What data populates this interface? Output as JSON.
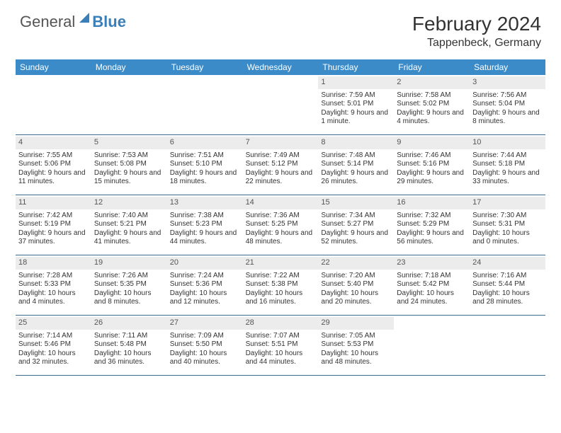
{
  "logo": {
    "part1": "General",
    "part2": "Blue"
  },
  "title": "February 2024",
  "location": "Tappenbeck, Germany",
  "weekdays": [
    "Sunday",
    "Monday",
    "Tuesday",
    "Wednesday",
    "Thursday",
    "Friday",
    "Saturday"
  ],
  "colors": {
    "header_bg": "#3b8bc9",
    "header_text": "#ffffff",
    "daynum_bg": "#ececec",
    "border": "#3b6a8f",
    "text": "#333333",
    "logo_blue": "#3b7fb8"
  },
  "layout": {
    "columns": 7,
    "rows": 5,
    "first_day_column": 4
  },
  "days": [
    {
      "n": 1,
      "sunrise": "7:59 AM",
      "sunset": "5:01 PM",
      "daylight": "9 hours and 1 minute."
    },
    {
      "n": 2,
      "sunrise": "7:58 AM",
      "sunset": "5:02 PM",
      "daylight": "9 hours and 4 minutes."
    },
    {
      "n": 3,
      "sunrise": "7:56 AM",
      "sunset": "5:04 PM",
      "daylight": "9 hours and 8 minutes."
    },
    {
      "n": 4,
      "sunrise": "7:55 AM",
      "sunset": "5:06 PM",
      "daylight": "9 hours and 11 minutes."
    },
    {
      "n": 5,
      "sunrise": "7:53 AM",
      "sunset": "5:08 PM",
      "daylight": "9 hours and 15 minutes."
    },
    {
      "n": 6,
      "sunrise": "7:51 AM",
      "sunset": "5:10 PM",
      "daylight": "9 hours and 18 minutes."
    },
    {
      "n": 7,
      "sunrise": "7:49 AM",
      "sunset": "5:12 PM",
      "daylight": "9 hours and 22 minutes."
    },
    {
      "n": 8,
      "sunrise": "7:48 AM",
      "sunset": "5:14 PM",
      "daylight": "9 hours and 26 minutes."
    },
    {
      "n": 9,
      "sunrise": "7:46 AM",
      "sunset": "5:16 PM",
      "daylight": "9 hours and 29 minutes."
    },
    {
      "n": 10,
      "sunrise": "7:44 AM",
      "sunset": "5:18 PM",
      "daylight": "9 hours and 33 minutes."
    },
    {
      "n": 11,
      "sunrise": "7:42 AM",
      "sunset": "5:19 PM",
      "daylight": "9 hours and 37 minutes."
    },
    {
      "n": 12,
      "sunrise": "7:40 AM",
      "sunset": "5:21 PM",
      "daylight": "9 hours and 41 minutes."
    },
    {
      "n": 13,
      "sunrise": "7:38 AM",
      "sunset": "5:23 PM",
      "daylight": "9 hours and 44 minutes."
    },
    {
      "n": 14,
      "sunrise": "7:36 AM",
      "sunset": "5:25 PM",
      "daylight": "9 hours and 48 minutes."
    },
    {
      "n": 15,
      "sunrise": "7:34 AM",
      "sunset": "5:27 PM",
      "daylight": "9 hours and 52 minutes."
    },
    {
      "n": 16,
      "sunrise": "7:32 AM",
      "sunset": "5:29 PM",
      "daylight": "9 hours and 56 minutes."
    },
    {
      "n": 17,
      "sunrise": "7:30 AM",
      "sunset": "5:31 PM",
      "daylight": "10 hours and 0 minutes."
    },
    {
      "n": 18,
      "sunrise": "7:28 AM",
      "sunset": "5:33 PM",
      "daylight": "10 hours and 4 minutes."
    },
    {
      "n": 19,
      "sunrise": "7:26 AM",
      "sunset": "5:35 PM",
      "daylight": "10 hours and 8 minutes."
    },
    {
      "n": 20,
      "sunrise": "7:24 AM",
      "sunset": "5:36 PM",
      "daylight": "10 hours and 12 minutes."
    },
    {
      "n": 21,
      "sunrise": "7:22 AM",
      "sunset": "5:38 PM",
      "daylight": "10 hours and 16 minutes."
    },
    {
      "n": 22,
      "sunrise": "7:20 AM",
      "sunset": "5:40 PM",
      "daylight": "10 hours and 20 minutes."
    },
    {
      "n": 23,
      "sunrise": "7:18 AM",
      "sunset": "5:42 PM",
      "daylight": "10 hours and 24 minutes."
    },
    {
      "n": 24,
      "sunrise": "7:16 AM",
      "sunset": "5:44 PM",
      "daylight": "10 hours and 28 minutes."
    },
    {
      "n": 25,
      "sunrise": "7:14 AM",
      "sunset": "5:46 PM",
      "daylight": "10 hours and 32 minutes."
    },
    {
      "n": 26,
      "sunrise": "7:11 AM",
      "sunset": "5:48 PM",
      "daylight": "10 hours and 36 minutes."
    },
    {
      "n": 27,
      "sunrise": "7:09 AM",
      "sunset": "5:50 PM",
      "daylight": "10 hours and 40 minutes."
    },
    {
      "n": 28,
      "sunrise": "7:07 AM",
      "sunset": "5:51 PM",
      "daylight": "10 hours and 44 minutes."
    },
    {
      "n": 29,
      "sunrise": "7:05 AM",
      "sunset": "5:53 PM",
      "daylight": "10 hours and 48 minutes."
    }
  ],
  "labels": {
    "sunrise": "Sunrise: ",
    "sunset": "Sunset: ",
    "daylight": "Daylight: "
  }
}
